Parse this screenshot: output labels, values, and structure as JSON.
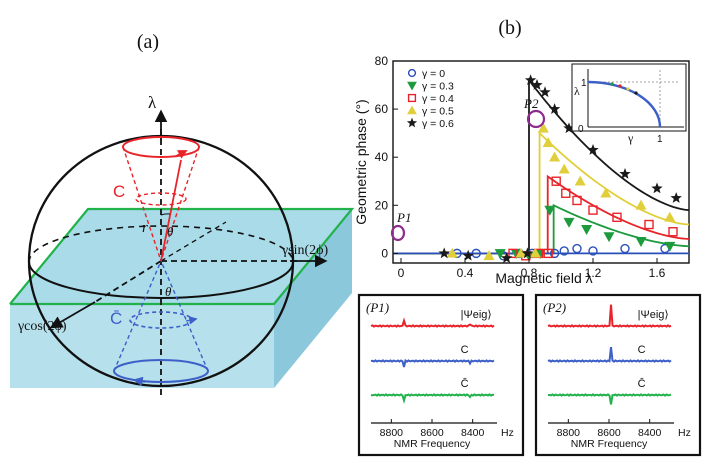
{
  "panel_a": {
    "label": "(a)",
    "axis_lambda": "λ",
    "axis_y": "γsin(2ϕ)",
    "axis_x": "γcos(2ϕ)",
    "cone_c": "C",
    "cone_cbar": "C̄",
    "radius_r": "r",
    "angle_theta_upper": "θ",
    "angle_theta_lower": "θ",
    "colors": {
      "c_red": "#e8242a",
      "cbar_blue": "#3d5fc8",
      "plane_green": "#22b24c",
      "plane_fill": "#a9dbe9"
    }
  },
  "panel_b": {
    "label": "(b)",
    "p1_label": "P1",
    "p2_label": "P2",
    "inset": {
      "lambda": "λ",
      "gamma": "γ",
      "one_y": "1",
      "one_x": "1",
      "zero": "0"
    }
  },
  "chart_data": [
    {
      "type": "scatter",
      "title": "",
      "xlabel": "Magnetic field λ",
      "ylabel": "Geometric phase (°)",
      "xlim": [
        -0.05,
        1.8
      ],
      "ylim": [
        -4,
        80
      ],
      "xticks": [
        "0",
        "0.4",
        "0.8",
        "1.2",
        "1.6"
      ],
      "yticks": [
        "0",
        "20",
        "40",
        "60",
        "80"
      ],
      "legend": [
        "γ = 0",
        "γ = 0.3",
        "γ = 0.4",
        "γ = 0.5",
        "γ = 0.6"
      ],
      "legend_position": "top-left",
      "series": [
        {
          "name": "γ = 0",
          "marker": "circle",
          "color": "#2a4fb8",
          "x": [
            0.35,
            0.47,
            0.64,
            0.74,
            0.82,
            0.96,
            1.02,
            1.1,
            1.2,
            1.4,
            1.65
          ],
          "y": [
            0,
            0,
            -1,
            0,
            0,
            0,
            1,
            2,
            1,
            2,
            2
          ]
        },
        {
          "name": "γ = 0.3",
          "marker": "triangle-down",
          "color": "#1c9a3c",
          "x": [
            0.62,
            0.72,
            0.8,
            0.87,
            0.93,
            1.05,
            1.16,
            1.3,
            1.5,
            1.68
          ],
          "y": [
            0,
            0,
            -1,
            0,
            18,
            13,
            10,
            7,
            5,
            3
          ]
        },
        {
          "name": "γ = 0.4",
          "marker": "square",
          "color": "#e8242a",
          "x": [
            0.7,
            0.78,
            0.86,
            0.92,
            0.97,
            1.03,
            1.1,
            1.2,
            1.35,
            1.55,
            1.7
          ],
          "y": [
            0,
            -1,
            0,
            0,
            30,
            25,
            22,
            18,
            15,
            12,
            9
          ]
        },
        {
          "name": "γ = 0.5",
          "marker": "triangle-up",
          "color": "#e0cf3a",
          "x": [
            0.32,
            0.55,
            0.75,
            0.84,
            0.89,
            0.92,
            0.96,
            1.02,
            1.12,
            1.28,
            1.5,
            1.68
          ],
          "y": [
            0,
            -1,
            0,
            0,
            52,
            46,
            40,
            35,
            30,
            25,
            20,
            15
          ]
        },
        {
          "name": "γ = 0.6",
          "marker": "star",
          "color": "#1a1a1a",
          "x": [
            0.27,
            0.42,
            0.66,
            0.79,
            0.81,
            0.85,
            0.9,
            0.96,
            1.05,
            1.2,
            1.4,
            1.6,
            1.72
          ],
          "y": [
            0,
            -1,
            -2,
            0,
            72,
            70,
            67,
            60,
            52,
            43,
            33,
            27,
            23
          ]
        }
      ],
      "fit_curves": [
        {
          "name": "γ = 0.6",
          "color": "#1a1a1a",
          "jump_x": 0.8,
          "jump_to": 72,
          "end_y": 18
        },
        {
          "name": "γ = 0.5",
          "color": "#e0cf3a",
          "jump_x": 0.866,
          "jump_to": 50,
          "end_y": 12
        },
        {
          "name": "γ = 0.4",
          "color": "#e8242a",
          "jump_x": 0.917,
          "jump_to": 32,
          "end_y": 6
        },
        {
          "name": "γ = 0.3",
          "color": "#1c9a3c",
          "jump_x": 0.954,
          "jump_to": 20,
          "end_y": 3
        },
        {
          "name": "γ = 0",
          "color": "#2a4fb8",
          "jump_x": 1.0,
          "jump_to": 0,
          "end_y": 0
        }
      ]
    },
    {
      "type": "line",
      "title": "(P1)",
      "xlabel": "NMR Frequency",
      "unit": "Hz",
      "xticks": [
        "8800",
        "8600",
        "8400"
      ],
      "series": [
        {
          "name": "|Ψeig⟩",
          "color": "#e8242a",
          "peaks": [
            8740,
            8410
          ],
          "direction": "up"
        },
        {
          "name": "C",
          "color": "#3d5fc8",
          "peaks": [
            8740,
            8410
          ],
          "direction": "down"
        },
        {
          "name": "C̄",
          "color": "#22b24c",
          "peaks": [
            8740,
            8410
          ],
          "direction": "down"
        }
      ]
    },
    {
      "type": "line",
      "title": "(P2)",
      "xlabel": "NMR Frequency",
      "unit": "Hz",
      "xticks": [
        "8800",
        "8600",
        "8400"
      ],
      "series": [
        {
          "name": "|Ψeig⟩",
          "color": "#e8242a",
          "peaks": [
            8590
          ],
          "direction": "up"
        },
        {
          "name": "C",
          "color": "#3d5fc8",
          "peaks": [
            8590
          ],
          "direction": "dispersive"
        },
        {
          "name": "C̄",
          "color": "#22b24c",
          "peaks": [
            8590
          ],
          "direction": "dispersive-neg"
        }
      ]
    }
  ]
}
